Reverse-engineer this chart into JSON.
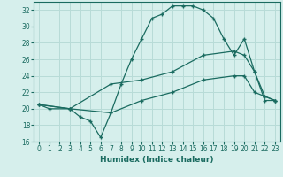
{
  "title": "",
  "xlabel": "Humidex (Indice chaleur)",
  "xlim": [
    -0.5,
    23.5
  ],
  "ylim": [
    16,
    33
  ],
  "xticks": [
    0,
    1,
    2,
    3,
    4,
    5,
    6,
    7,
    8,
    9,
    10,
    11,
    12,
    13,
    14,
    15,
    16,
    17,
    18,
    19,
    20,
    21,
    22,
    23
  ],
  "yticks": [
    16,
    18,
    20,
    22,
    24,
    26,
    28,
    30,
    32
  ],
  "bg_color": "#d6efec",
  "grid_color": "#b8dbd7",
  "line_color": "#1a6b60",
  "curve1_x": [
    0,
    1,
    3,
    4,
    5,
    6,
    7,
    8,
    9,
    10,
    11,
    12,
    13,
    14,
    15,
    16,
    17,
    18,
    19,
    20,
    21,
    22,
    23
  ],
  "curve1_y": [
    20.5,
    20.0,
    20.0,
    19.0,
    18.5,
    16.5,
    19.5,
    23.0,
    26.0,
    28.5,
    31.0,
    31.5,
    32.5,
    32.5,
    32.5,
    32.0,
    31.0,
    28.5,
    26.5,
    28.5,
    24.5,
    21.5,
    21.0
  ],
  "curve2_x": [
    0,
    3,
    7,
    10,
    13,
    16,
    19,
    20,
    21,
    22,
    23
  ],
  "curve2_y": [
    20.5,
    20.0,
    23.0,
    23.5,
    24.5,
    26.5,
    27.0,
    26.5,
    24.5,
    21.0,
    21.0
  ],
  "curve3_x": [
    0,
    3,
    7,
    10,
    13,
    16,
    19,
    20,
    21,
    22,
    23
  ],
  "curve3_y": [
    20.5,
    20.0,
    19.5,
    21.0,
    22.0,
    23.5,
    24.0,
    24.0,
    22.0,
    21.5,
    21.0
  ]
}
